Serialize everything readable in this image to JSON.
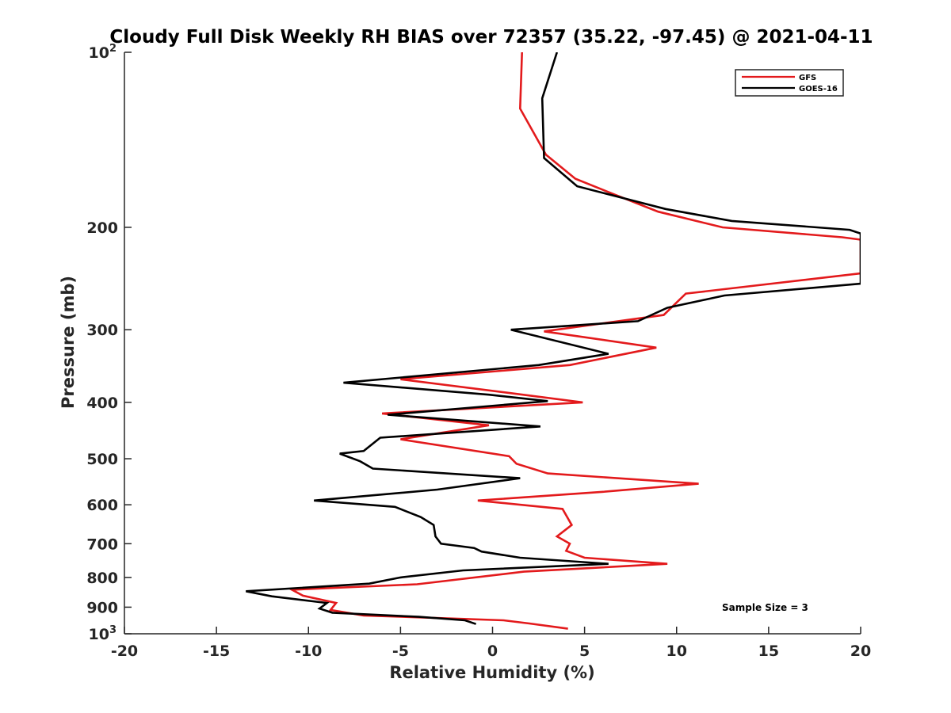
{
  "chart_data": {
    "type": "line",
    "title": "Cloudy Full Disk Weekly RH BIAS over 72357 (35.22, -97.45) @ 2021-04-11",
    "xlabel": "Relative Humidity (%)",
    "ylabel": "Pressure (mb)",
    "xlim": [
      -20,
      20
    ],
    "ylim": [
      100,
      1000
    ],
    "y_scale": "log",
    "y_reversed": true,
    "grid": false,
    "legend_position": "top-right",
    "x_ticks": [
      -20,
      -15,
      -10,
      -5,
      0,
      5,
      10,
      15,
      20
    ],
    "x_tick_labels": [
      "-20",
      "-15",
      "-10",
      "-5",
      "0",
      "5",
      "10",
      "15",
      "20"
    ],
    "y_ticks": [
      100,
      200,
      300,
      400,
      500,
      600,
      700,
      800,
      900,
      1000
    ],
    "y_tick_labels": [
      {
        "base": "10",
        "exp": "2"
      },
      {
        "base": "200",
        "exp": ""
      },
      {
        "base": "300",
        "exp": ""
      },
      {
        "base": "400",
        "exp": ""
      },
      {
        "base": "500",
        "exp": ""
      },
      {
        "base": "600",
        "exp": ""
      },
      {
        "base": "700",
        "exp": ""
      },
      {
        "base": "800",
        "exp": ""
      },
      {
        "base": "900",
        "exp": ""
      },
      {
        "base": "10",
        "exp": "3"
      }
    ],
    "annotation": "Sample Size = 3",
    "series": [
      {
        "name": "GFS",
        "color": "#e31a1c",
        "points": [
          [
            1.6,
            100
          ],
          [
            1.5,
            125
          ],
          [
            2.9,
            150
          ],
          [
            4.5,
            165
          ],
          [
            6.7,
            176
          ],
          [
            9.0,
            188
          ],
          [
            12.5,
            200
          ],
          [
            19.0,
            208
          ],
          [
            20.0,
            210
          ],
          [
            20.0,
            240
          ],
          [
            10.5,
            260
          ],
          [
            9.3,
            283
          ],
          [
            2.8,
            302
          ],
          [
            8.9,
            322
          ],
          [
            4.2,
            345
          ],
          [
            -5.0,
            365
          ],
          [
            0.8,
            385
          ],
          [
            4.9,
            400
          ],
          [
            -6.0,
            418
          ],
          [
            -0.2,
            438
          ],
          [
            -5.0,
            463
          ],
          [
            0.9,
            495
          ],
          [
            1.3,
            510
          ],
          [
            3.0,
            530
          ],
          [
            11.2,
            552
          ],
          [
            6.0,
            570
          ],
          [
            -0.8,
            590
          ],
          [
            3.8,
            610
          ],
          [
            4.3,
            650
          ],
          [
            3.5,
            680
          ],
          [
            4.2,
            700
          ],
          [
            4.0,
            720
          ],
          [
            5.0,
            740
          ],
          [
            9.5,
            758
          ],
          [
            1.7,
            782
          ],
          [
            -4.1,
            822
          ],
          [
            -10.9,
            840
          ],
          [
            -10.3,
            860
          ],
          [
            -8.5,
            885
          ],
          [
            -8.8,
            910
          ],
          [
            -7.0,
            930
          ],
          [
            0.6,
            948
          ],
          [
            2.0,
            960
          ],
          [
            4.1,
            980
          ]
        ]
      },
      {
        "name": "GOES-16",
        "color": "#000000",
        "points": [
          [
            3.5,
            100
          ],
          [
            2.7,
            120
          ],
          [
            2.8,
            152
          ],
          [
            4.6,
            170
          ],
          [
            9.4,
            186
          ],
          [
            13.0,
            195
          ],
          [
            19.4,
            202
          ],
          [
            20.0,
            205
          ],
          [
            20.0,
            250
          ],
          [
            12.6,
            262
          ],
          [
            9.5,
            275
          ],
          [
            7.9,
            290
          ],
          [
            1.0,
            300
          ],
          [
            6.3,
            330
          ],
          [
            2.5,
            345
          ],
          [
            -8.1,
            370
          ],
          [
            -0.2,
            388
          ],
          [
            3.0,
            398
          ],
          [
            -5.7,
            420
          ],
          [
            2.6,
            440
          ],
          [
            -6.1,
            460
          ],
          [
            -7.0,
            485
          ],
          [
            -8.3,
            490
          ],
          [
            -7.2,
            505
          ],
          [
            -6.5,
            520
          ],
          [
            1.5,
            540
          ],
          [
            -3.0,
            565
          ],
          [
            -9.7,
            590
          ],
          [
            -5.3,
            605
          ],
          [
            -3.9,
            630
          ],
          [
            -3.2,
            650
          ],
          [
            -3.1,
            680
          ],
          [
            -2.8,
            700
          ],
          [
            -1.0,
            712
          ],
          [
            -0.6,
            722
          ],
          [
            1.5,
            740
          ],
          [
            6.3,
            758
          ],
          [
            -1.6,
            778
          ],
          [
            -5.0,
            800
          ],
          [
            -6.7,
            820
          ],
          [
            -13.4,
            845
          ],
          [
            -12.0,
            862
          ],
          [
            -9.0,
            885
          ],
          [
            -9.4,
            905
          ],
          [
            -8.7,
            920
          ],
          [
            -4.0,
            935
          ],
          [
            -1.5,
            948
          ],
          [
            -0.9,
            962
          ]
        ]
      }
    ]
  }
}
